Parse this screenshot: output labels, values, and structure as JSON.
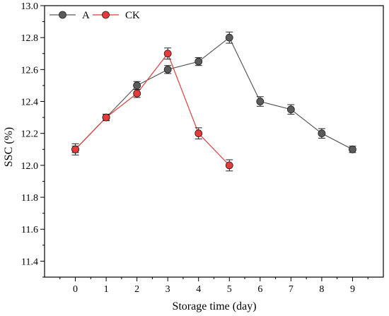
{
  "chart_data": {
    "type": "line",
    "title": "",
    "xlabel": "Storage time (day)",
    "ylabel": "SSC (%)",
    "xlim": [
      -1,
      10
    ],
    "ylim": [
      11.3,
      13.0
    ],
    "x_ticks": [
      0,
      1,
      2,
      3,
      4,
      5,
      6,
      7,
      8,
      9
    ],
    "y_ticks": [
      11.4,
      11.6,
      11.8,
      12.0,
      12.2,
      12.4,
      12.6,
      12.8,
      13.0
    ],
    "grid": false,
    "legend_position": "top-left",
    "series": [
      {
        "name": "A",
        "color": "#5b5b5b",
        "marker": "filled-circle",
        "x": [
          0,
          1,
          2,
          3,
          4,
          5,
          6,
          7,
          8,
          9
        ],
        "values": [
          12.1,
          12.3,
          12.5,
          12.6,
          12.65,
          12.8,
          12.4,
          12.35,
          12.2,
          12.1
        ],
        "error": [
          0.02,
          0.02,
          0.025,
          0.025,
          0.025,
          0.035,
          0.03,
          0.03,
          0.03,
          0.02
        ]
      },
      {
        "name": "CK",
        "color": "#e83a3a",
        "marker": "filled-circle",
        "x": [
          0,
          1,
          2,
          3,
          4,
          5
        ],
        "values": [
          12.1,
          12.3,
          12.45,
          12.7,
          12.2,
          12.0
        ],
        "error": [
          0.035,
          0.02,
          0.025,
          0.035,
          0.035,
          0.035
        ]
      }
    ]
  }
}
